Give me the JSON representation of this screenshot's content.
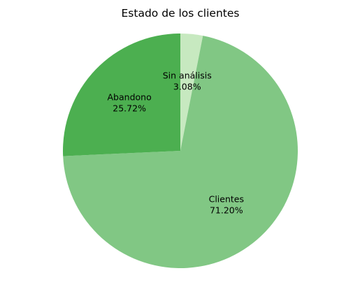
{
  "chart_data": {
    "type": "pie",
    "title": "Estado de los clientes",
    "slices": [
      {
        "label": "Sin análisis",
        "value": 3.08,
        "percent_label": "3.08%",
        "color": "#c7e9c0"
      },
      {
        "label": "Clientes",
        "value": 71.2,
        "percent_label": "71.20%",
        "color": "#81c784"
      },
      {
        "label": "Abandono",
        "value": 25.72,
        "percent_label": "25.72%",
        "color": "#4caf50"
      }
    ],
    "start_angle": 90,
    "direction": "clockwise",
    "legend": "none"
  }
}
